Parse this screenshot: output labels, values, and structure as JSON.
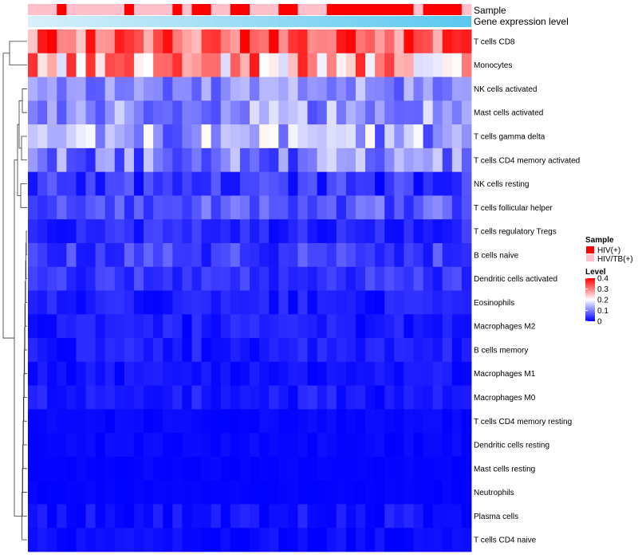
{
  "chart_data": {
    "type": "heatmap",
    "annotations": {
      "sample_label": "Sample",
      "expression_label": "Gene expression level"
    },
    "samples": {
      "count": 46,
      "groups": [
        "HIV/TB(+)",
        "HIV/TB(+)",
        "HIV/TB(+)",
        "HIV(+)",
        "HIV/TB(+)",
        "HIV/TB(+)",
        "HIV/TB(+)",
        "HIV/TB(+)",
        "HIV/TB(+)",
        "HIV/TB(+)",
        "HIV(+)",
        "HIV/TB(+)",
        "HIV/TB(+)",
        "HIV/TB(+)",
        "HIV/TB(+)",
        "HIV(+)",
        "HIV/TB(+)",
        "HIV(+)",
        "HIV(+)",
        "HIV/TB(+)",
        "HIV/TB(+)",
        "HIV(+)",
        "HIV(+)",
        "HIV/TB(+)",
        "HIV/TB(+)",
        "HIV/TB(+)",
        "HIV(+)",
        "HIV(+)",
        "HIV/TB(+)",
        "HIV/TB(+)",
        "HIV/TB(+)",
        "HIV(+)",
        "HIV(+)",
        "HIV(+)",
        "HIV(+)",
        "HIV(+)",
        "HIV(+)",
        "HIV(+)",
        "HIV(+)",
        "HIV(+)",
        "HIV/TB(+)",
        "HIV(+)",
        "HIV(+)",
        "HIV(+)",
        "HIV(+)",
        "HIV/TB(+)"
      ]
    },
    "rows": [
      "T cells CD8",
      "Monocytes",
      "NK cells activated",
      "Mast cells activated",
      "T cells gamma delta",
      "T cells CD4 memory activated",
      "NK cells resting",
      "T cells follicular helper",
      "T cells regulatory  Tregs",
      "B cells naive",
      "Dendritic cells activated",
      "Eosinophils",
      "Macrophages M2",
      "B cells memory",
      "Macrophages M1",
      "Macrophages M0",
      "T cells CD4 memory resting",
      "Dendritic cells resting",
      "Mast cells resting",
      "Neutrophils",
      "Plasma cells",
      "T cells CD4 naive"
    ],
    "level_range": [
      0,
      0.4
    ],
    "row_means": [
      0.33,
      0.27,
      0.11,
      0.12,
      0.13,
      0.1,
      0.04,
      0.07,
      0.03,
      0.05,
      0.04,
      0.02,
      0.02,
      0.02,
      0.015,
      0.02,
      0.005,
      0.006,
      0.004,
      0.003,
      0.012,
      0.008
    ],
    "row_spread": [
      0.09,
      0.11,
      0.05,
      0.06,
      0.08,
      0.07,
      0.04,
      0.04,
      0.025,
      0.035,
      0.025,
      0.02,
      0.02,
      0.02,
      0.015,
      0.02,
      0.006,
      0.006,
      0.004,
      0.003,
      0.02,
      0.012
    ],
    "legend": {
      "sample": {
        "title": "Sample",
        "items": [
          {
            "label": "HIV(+)",
            "color": "#ff0000"
          },
          {
            "label": "HIV/TB(+)",
            "color": "#ffc0cb"
          }
        ]
      },
      "level": {
        "title": "Level",
        "ticks": [
          {
            "value": 0.4,
            "label": "0.4"
          },
          {
            "value": 0.3,
            "label": "0.3"
          },
          {
            "value": 0.2,
            "label": "0.2"
          },
          {
            "value": 0.1,
            "label": "0.1"
          },
          {
            "value": 0,
            "label": "0"
          }
        ]
      }
    },
    "colors": {
      "low": "#0000ff",
      "mid": "#ffffff",
      "high": "#ff0000",
      "expression_bar": "#87cefa"
    }
  }
}
